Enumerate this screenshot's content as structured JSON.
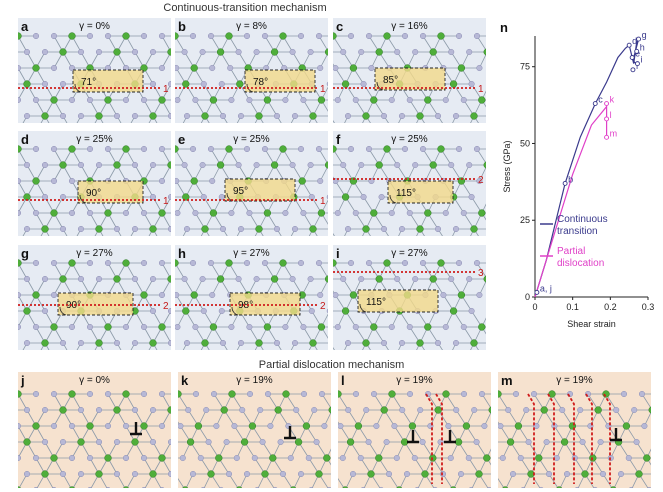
{
  "titles": {
    "continuous": "Continuous-transition mechanism",
    "partial": "Partial dislocation mechanism"
  },
  "colors": {
    "panel_ct": "#e6ebf3",
    "panel_pd": "#f6e2cf",
    "atom_green": "#4fae3a",
    "atom_grey": "#b7b8d6",
    "dashed_line": "#d01c1c",
    "highlight": "#f3d98a",
    "continuous_line": "#3a3a8c",
    "partial_line": "#e040c8"
  },
  "panels_ct": [
    {
      "label": "a",
      "gamma": "γ = 0%",
      "angle": "71°",
      "line": "1"
    },
    {
      "label": "b",
      "gamma": "γ = 8%",
      "angle": "78°",
      "line": "1"
    },
    {
      "label": "c",
      "gamma": "γ = 16%",
      "angle": "85°",
      "line": "1"
    },
    {
      "label": "d",
      "gamma": "γ = 25%",
      "angle": "90°",
      "line": "1"
    },
    {
      "label": "e",
      "gamma": "γ = 25%",
      "angle": "95°",
      "line": "1"
    },
    {
      "label": "f",
      "gamma": "γ = 25%",
      "angle": "115°",
      "line": "2"
    },
    {
      "label": "g",
      "gamma": "γ = 27%",
      "angle": "90°",
      "line": "2"
    },
    {
      "label": "h",
      "gamma": "γ = 27%",
      "angle": "98°",
      "line": "2"
    },
    {
      "label": "i",
      "gamma": "γ = 27%",
      "angle": "115°",
      "line": "3"
    }
  ],
  "panels_pd": [
    {
      "label": "j",
      "gamma": "γ = 0%"
    },
    {
      "label": "k",
      "gamma": "γ = 19%"
    },
    {
      "label": "l",
      "gamma": "γ = 19%"
    },
    {
      "label": "m",
      "gamma": "γ = 19%"
    }
  ],
  "chart_label": "n",
  "chart_data": {
    "type": "line",
    "xlabel": "Shear strain",
    "ylabel": "Stress (GPa)",
    "xlim": [
      0,
      0.3
    ],
    "ylim": [
      0,
      85
    ],
    "xticks": [
      "0",
      "0.1",
      "0.2",
      "0.3"
    ],
    "yticks": [
      "0",
      "25",
      "50",
      "75"
    ],
    "xtick_values": [
      0,
      0.1,
      0.2,
      0.3
    ],
    "ytick_values": [
      0,
      25,
      50,
      75
    ],
    "series": [
      {
        "name": "Continuous transition",
        "color": "#3a3a8c",
        "x": [
          0,
          0.03,
          0.08,
          0.12,
          0.16,
          0.19,
          0.22,
          0.24,
          0.25,
          0.258,
          0.262,
          0.27,
          0.275,
          0.26,
          0.268
        ],
        "y": [
          0,
          12,
          37,
          52,
          63,
          70,
          78,
          81,
          82,
          78,
          76,
          83,
          84,
          77,
          76
        ]
      },
      {
        "name": "Partial dislocation",
        "color": "#e040c8",
        "x": [
          0,
          0.05,
          0.1,
          0.15,
          0.19,
          0.19,
          0.19
        ],
        "y": [
          0,
          20,
          40,
          56,
          62,
          58,
          52
        ]
      }
    ],
    "point_labels": [
      {
        "text": "a, j",
        "x": 0.005,
        "y": 1.5,
        "color": "#3a3a8c"
      },
      {
        "text": "b",
        "x": 0.08,
        "y": 37,
        "color": "#3a3a8c"
      },
      {
        "text": "c",
        "x": 0.16,
        "y": 63,
        "color": "#3a3a8c"
      },
      {
        "text": "d",
        "x": 0.25,
        "y": 82,
        "color": "#3a3a8c"
      },
      {
        "text": "e",
        "x": 0.258,
        "y": 78,
        "color": "#3a3a8c"
      },
      {
        "text": "f",
        "x": 0.26,
        "y": 74,
        "color": "#3a3a8c"
      },
      {
        "text": "g",
        "x": 0.275,
        "y": 84,
        "color": "#3a3a8c"
      },
      {
        "text": "h",
        "x": 0.27,
        "y": 80,
        "color": "#3a3a8c"
      },
      {
        "text": "i",
        "x": 0.272,
        "y": 76,
        "color": "#3a3a8c"
      },
      {
        "text": "k",
        "x": 0.19,
        "y": 63,
        "color": "#e040c8"
      },
      {
        "text": "l",
        "x": 0.19,
        "y": 58,
        "color": "#e040c8"
      },
      {
        "text": "m",
        "x": 0.19,
        "y": 52,
        "color": "#e040c8"
      }
    ],
    "legend": [
      {
        "text": "Continuous\ntransition",
        "color": "#3a3a8c"
      },
      {
        "text": "Partial\ndislocation",
        "color": "#e040c8"
      }
    ]
  }
}
